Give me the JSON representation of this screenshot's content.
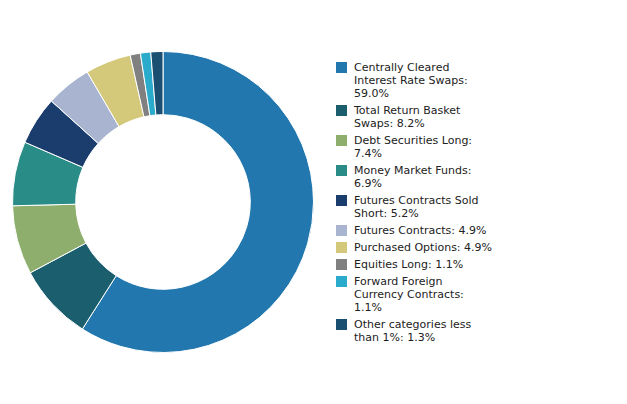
{
  "chart_data": {
    "type": "doughnut",
    "categories": [
      "Centrally Cleared\nInterest Rate Swaps:\n59.0%",
      "Total Return Basket\nSwaps: 8.2%",
      "Debt Securities Long:\n7.4%",
      "Money Market Funds:\n6.9%",
      "Futures Contracts Sold\nShort: 5.2%",
      "Futures Contracts: 4.9%",
      "Purchased Options: 4.9%",
      "Equities Long: 1.1%",
      "Forward Foreign\nCurrency Contracts:\n1.1%",
      "Other categories less\nthan 1%: 1.3%"
    ],
    "values": [
      59.0,
      8.2,
      7.4,
      6.9,
      5.2,
      4.9,
      4.9,
      1.1,
      1.1,
      1.3
    ],
    "colors": [
      "#2177AE",
      "#1B5E6E",
      "#8EAE6E",
      "#2A8C87",
      "#1B3D6E",
      "#A8B4D0",
      "#D4C87A",
      "#808080",
      "#2AABCB",
      "#1B4F72"
    ],
    "legend": "right"
  }
}
